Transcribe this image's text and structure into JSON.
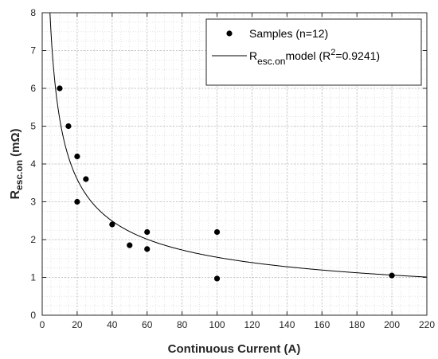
{
  "chart_data": {
    "type": "scatter",
    "xlabel": "Continuous Current (A)",
    "ylabel": {
      "main": "R",
      "sub": "esc.on",
      "unit": " (mΩ)"
    },
    "xlim": [
      0,
      220
    ],
    "ylim": [
      0,
      8
    ],
    "xticks": [
      0,
      20,
      40,
      60,
      80,
      100,
      120,
      140,
      160,
      180,
      200,
      220
    ],
    "yticks": [
      0,
      1,
      2,
      3,
      4,
      5,
      6,
      7,
      8
    ],
    "grid": true,
    "minor_grid": true,
    "legend_position": "top-right",
    "series": [
      {
        "name": "Samples (n=12)",
        "kind": "scatter",
        "color": "#000000",
        "points": [
          {
            "x": 10,
            "y": 6.0
          },
          {
            "x": 15,
            "y": 5.0
          },
          {
            "x": 20,
            "y": 4.2
          },
          {
            "x": 20,
            "y": 3.0
          },
          {
            "x": 25,
            "y": 3.6
          },
          {
            "x": 40,
            "y": 2.4
          },
          {
            "x": 50,
            "y": 1.85
          },
          {
            "x": 60,
            "y": 2.2
          },
          {
            "x": 60,
            "y": 1.75
          },
          {
            "x": 100,
            "y": 2.2
          },
          {
            "x": 100,
            "y": 0.97
          },
          {
            "x": 200,
            "y": 1.05
          }
        ]
      },
      {
        "kind": "line",
        "color": "#000000",
        "legend_parts": {
          "r": "R",
          "sub": "esc.on",
          "mid": "model (R",
          "sup": "2",
          "tail": "=0.9241)"
        },
        "model": {
          "a": 17.6,
          "b": -0.53
        }
      }
    ]
  }
}
